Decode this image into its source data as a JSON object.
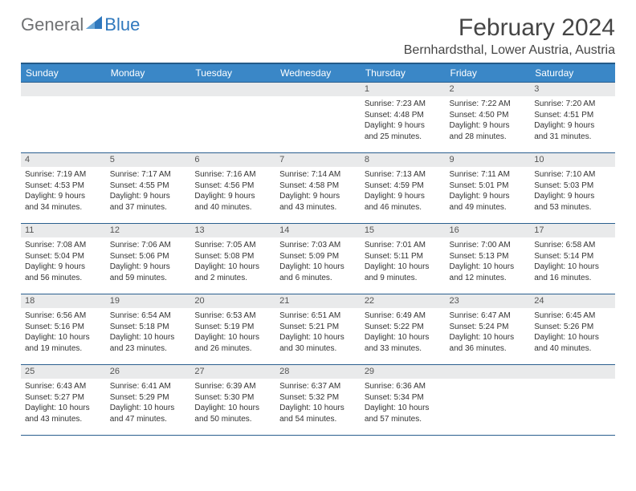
{
  "logo": {
    "general": "General",
    "blue": "Blue"
  },
  "header": {
    "title": "February 2024",
    "location": "Bernhardsthal, Lower Austria, Austria"
  },
  "colors": {
    "header_bg": "#3a87c7",
    "header_border": "#245a88",
    "row_border": "#2a5f8f",
    "daynum_bg": "#e9eaeb",
    "daynum_fg": "#555555",
    "body_fg": "#333333",
    "title_fg": "#454545",
    "logo_gray": "#6f7173",
    "logo_blue": "#2f78bd",
    "page_bg": "#ffffff"
  },
  "typography": {
    "title_fontsize": 30,
    "location_fontsize": 16,
    "weekday_fontsize": 12,
    "daynum_fontsize": 11,
    "body_fontsize": 10,
    "font_family": "Arial"
  },
  "calendar": {
    "type": "table",
    "columns": [
      "Sunday",
      "Monday",
      "Tuesday",
      "Wednesday",
      "Thursday",
      "Friday",
      "Saturday"
    ],
    "weeks": [
      [
        {
          "day": "",
          "lines": []
        },
        {
          "day": "",
          "lines": []
        },
        {
          "day": "",
          "lines": []
        },
        {
          "day": "",
          "lines": []
        },
        {
          "day": "1",
          "lines": [
            "Sunrise: 7:23 AM",
            "Sunset: 4:48 PM",
            "Daylight: 9 hours",
            "and 25 minutes."
          ]
        },
        {
          "day": "2",
          "lines": [
            "Sunrise: 7:22 AM",
            "Sunset: 4:50 PM",
            "Daylight: 9 hours",
            "and 28 minutes."
          ]
        },
        {
          "day": "3",
          "lines": [
            "Sunrise: 7:20 AM",
            "Sunset: 4:51 PM",
            "Daylight: 9 hours",
            "and 31 minutes."
          ]
        }
      ],
      [
        {
          "day": "4",
          "lines": [
            "Sunrise: 7:19 AM",
            "Sunset: 4:53 PM",
            "Daylight: 9 hours",
            "and 34 minutes."
          ]
        },
        {
          "day": "5",
          "lines": [
            "Sunrise: 7:17 AM",
            "Sunset: 4:55 PM",
            "Daylight: 9 hours",
            "and 37 minutes."
          ]
        },
        {
          "day": "6",
          "lines": [
            "Sunrise: 7:16 AM",
            "Sunset: 4:56 PM",
            "Daylight: 9 hours",
            "and 40 minutes."
          ]
        },
        {
          "day": "7",
          "lines": [
            "Sunrise: 7:14 AM",
            "Sunset: 4:58 PM",
            "Daylight: 9 hours",
            "and 43 minutes."
          ]
        },
        {
          "day": "8",
          "lines": [
            "Sunrise: 7:13 AM",
            "Sunset: 4:59 PM",
            "Daylight: 9 hours",
            "and 46 minutes."
          ]
        },
        {
          "day": "9",
          "lines": [
            "Sunrise: 7:11 AM",
            "Sunset: 5:01 PM",
            "Daylight: 9 hours",
            "and 49 minutes."
          ]
        },
        {
          "day": "10",
          "lines": [
            "Sunrise: 7:10 AM",
            "Sunset: 5:03 PM",
            "Daylight: 9 hours",
            "and 53 minutes."
          ]
        }
      ],
      [
        {
          "day": "11",
          "lines": [
            "Sunrise: 7:08 AM",
            "Sunset: 5:04 PM",
            "Daylight: 9 hours",
            "and 56 minutes."
          ]
        },
        {
          "day": "12",
          "lines": [
            "Sunrise: 7:06 AM",
            "Sunset: 5:06 PM",
            "Daylight: 9 hours",
            "and 59 minutes."
          ]
        },
        {
          "day": "13",
          "lines": [
            "Sunrise: 7:05 AM",
            "Sunset: 5:08 PM",
            "Daylight: 10 hours",
            "and 2 minutes."
          ]
        },
        {
          "day": "14",
          "lines": [
            "Sunrise: 7:03 AM",
            "Sunset: 5:09 PM",
            "Daylight: 10 hours",
            "and 6 minutes."
          ]
        },
        {
          "day": "15",
          "lines": [
            "Sunrise: 7:01 AM",
            "Sunset: 5:11 PM",
            "Daylight: 10 hours",
            "and 9 minutes."
          ]
        },
        {
          "day": "16",
          "lines": [
            "Sunrise: 7:00 AM",
            "Sunset: 5:13 PM",
            "Daylight: 10 hours",
            "and 12 minutes."
          ]
        },
        {
          "day": "17",
          "lines": [
            "Sunrise: 6:58 AM",
            "Sunset: 5:14 PM",
            "Daylight: 10 hours",
            "and 16 minutes."
          ]
        }
      ],
      [
        {
          "day": "18",
          "lines": [
            "Sunrise: 6:56 AM",
            "Sunset: 5:16 PM",
            "Daylight: 10 hours",
            "and 19 minutes."
          ]
        },
        {
          "day": "19",
          "lines": [
            "Sunrise: 6:54 AM",
            "Sunset: 5:18 PM",
            "Daylight: 10 hours",
            "and 23 minutes."
          ]
        },
        {
          "day": "20",
          "lines": [
            "Sunrise: 6:53 AM",
            "Sunset: 5:19 PM",
            "Daylight: 10 hours",
            "and 26 minutes."
          ]
        },
        {
          "day": "21",
          "lines": [
            "Sunrise: 6:51 AM",
            "Sunset: 5:21 PM",
            "Daylight: 10 hours",
            "and 30 minutes."
          ]
        },
        {
          "day": "22",
          "lines": [
            "Sunrise: 6:49 AM",
            "Sunset: 5:22 PM",
            "Daylight: 10 hours",
            "and 33 minutes."
          ]
        },
        {
          "day": "23",
          "lines": [
            "Sunrise: 6:47 AM",
            "Sunset: 5:24 PM",
            "Daylight: 10 hours",
            "and 36 minutes."
          ]
        },
        {
          "day": "24",
          "lines": [
            "Sunrise: 6:45 AM",
            "Sunset: 5:26 PM",
            "Daylight: 10 hours",
            "and 40 minutes."
          ]
        }
      ],
      [
        {
          "day": "25",
          "lines": [
            "Sunrise: 6:43 AM",
            "Sunset: 5:27 PM",
            "Daylight: 10 hours",
            "and 43 minutes."
          ]
        },
        {
          "day": "26",
          "lines": [
            "Sunrise: 6:41 AM",
            "Sunset: 5:29 PM",
            "Daylight: 10 hours",
            "and 47 minutes."
          ]
        },
        {
          "day": "27",
          "lines": [
            "Sunrise: 6:39 AM",
            "Sunset: 5:30 PM",
            "Daylight: 10 hours",
            "and 50 minutes."
          ]
        },
        {
          "day": "28",
          "lines": [
            "Sunrise: 6:37 AM",
            "Sunset: 5:32 PM",
            "Daylight: 10 hours",
            "and 54 minutes."
          ]
        },
        {
          "day": "29",
          "lines": [
            "Sunrise: 6:36 AM",
            "Sunset: 5:34 PM",
            "Daylight: 10 hours",
            "and 57 minutes."
          ]
        },
        {
          "day": "",
          "lines": []
        },
        {
          "day": "",
          "lines": []
        }
      ]
    ]
  }
}
